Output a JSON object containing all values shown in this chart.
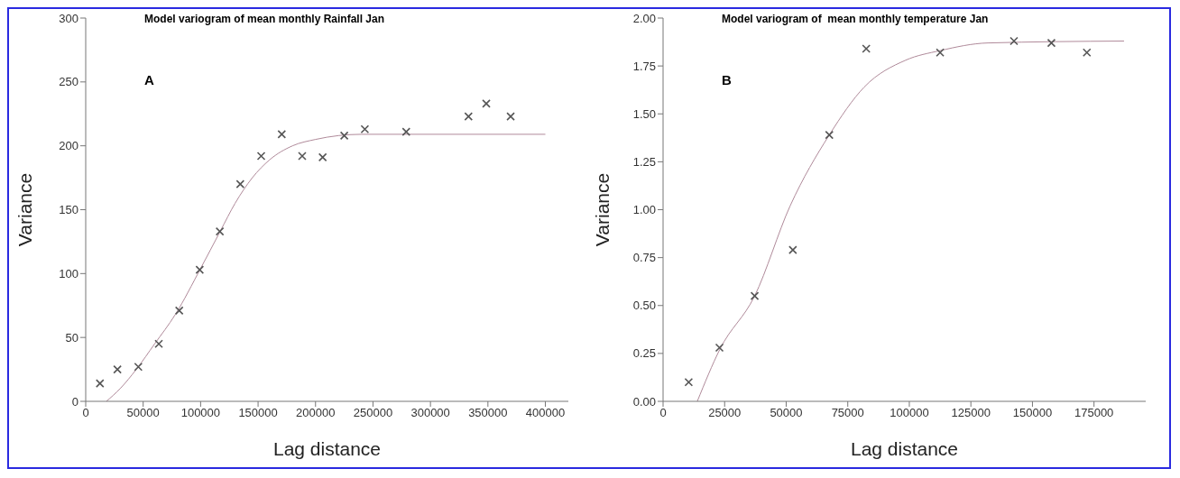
{
  "chart_data": [
    {
      "type": "scatter",
      "title": "Model variogram of mean monthly Rainfall Jan",
      "xlabel": "Lag distance",
      "ylabel": "Variance",
      "annotations": [
        "A"
      ],
      "xlim": [
        0,
        420000
      ],
      "xticks": [
        0,
        50000,
        100000,
        150000,
        200000,
        250000,
        300000,
        350000,
        400000
      ],
      "ylim": [
        0,
        300
      ],
      "yticks": [
        0,
        50,
        100,
        150,
        200,
        250,
        300
      ],
      "grid": false,
      "legend": false,
      "series": [
        {
          "marker": "cross",
          "color": "#555555",
          "x": [
            12400,
            27600,
            45800,
            63600,
            81400,
            99200,
            116700,
            134500,
            152700,
            170600,
            188400,
            206200,
            225000,
            242900,
            278900,
            333100,
            348600,
            369800
          ],
          "values": [
            14,
            25,
            27,
            45,
            71,
            103,
            133,
            170,
            192,
            209,
            192,
            191,
            208,
            213,
            211,
            223,
            233,
            223
          ]
        },
        {
          "type": "line",
          "marker": "none",
          "color": "#b08a9a",
          "line_style": "solid",
          "x": [
            18000,
            30000,
            44000,
            60000,
            78000,
            100000,
            117000,
            130000,
            145000,
            160000,
            180000,
            200000,
            220000,
            240000,
            400000
          ],
          "values": [
            0,
            10,
            25,
            45,
            68,
            104,
            133,
            155,
            175,
            189,
            200,
            205,
            208,
            209,
            209
          ]
        }
      ]
    },
    {
      "type": "scatter",
      "title": "Model variogram of  mean monthly temperature Jan",
      "xlabel": "Lag distance",
      "ylabel": "Variance",
      "annotations": [
        "B"
      ],
      "xlim": [
        0,
        196000
      ],
      "xticks": [
        0,
        25000,
        50000,
        75000,
        100000,
        125000,
        150000,
        175000
      ],
      "ylim": [
        0,
        2
      ],
      "yticks": [
        {
          "value": 0,
          "label": "0.00"
        },
        {
          "value": 0.25,
          "label": "0.25"
        },
        {
          "value": 0.5,
          "label": "0.50"
        },
        {
          "value": 0.75,
          "label": "0.75"
        },
        {
          "value": 1,
          "label": "1.00"
        },
        {
          "value": 1.25,
          "label": "1.25"
        },
        {
          "value": 1.5,
          "label": "1.50"
        },
        {
          "value": 1.75,
          "label": "1.75"
        },
        {
          "value": 2,
          "label": "2.00"
        }
      ],
      "grid": false,
      "legend": false,
      "series": [
        {
          "marker": "cross",
          "color": "#555555",
          "x": [
            10400,
            22900,
            37200,
            52700,
            67500,
            82500,
            112500,
            142500,
            157700,
            172100
          ],
          "values": [
            0.1,
            0.28,
            0.55,
            0.79,
            1.39,
            1.84,
            1.82,
            1.88,
            1.87,
            1.82
          ]
        },
        {
          "type": "line",
          "marker": "none",
          "color": "#b08a9a",
          "line_style": "solid",
          "x": [
            13900,
            23000,
            37200,
            51600,
            67500,
            81700,
            98500,
            112500,
            131900,
            187200
          ],
          "values": [
            0,
            0.27,
            0.55,
            1.02,
            1.39,
            1.64,
            1.78,
            1.83,
            1.87,
            1.88
          ]
        }
      ]
    }
  ]
}
